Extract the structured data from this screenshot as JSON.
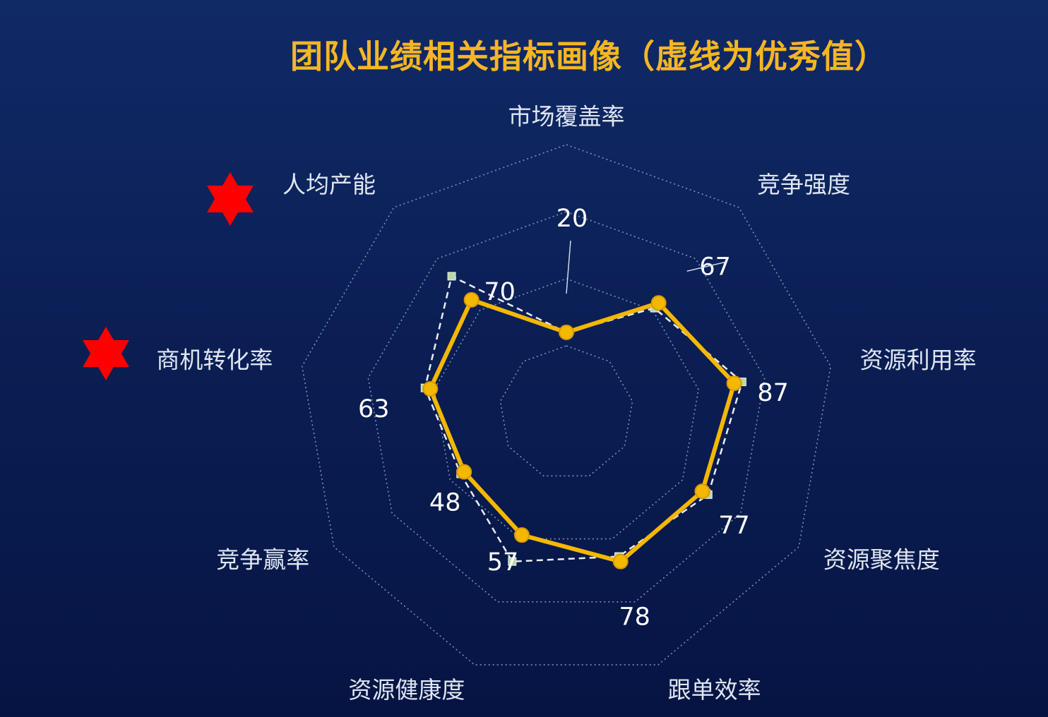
{
  "chart_data": {
    "type": "radar",
    "title": "团队业绩相关指标画像（虚线为优秀值）",
    "axes": [
      "市场覆盖率",
      "竞争强度",
      "资源利用率",
      "资源聚焦度",
      "跟单效率",
      "资源健康度",
      "竞争赢率",
      "商机转化率",
      "人均产能"
    ],
    "series": [
      {
        "values": [
          20,
          67,
          87,
          77,
          78,
          57,
          48,
          63,
          70
        ]
      },
      {
        "values": [
          20,
          62,
          93,
          82,
          74,
          78,
          51,
          67,
          93
        ]
      }
    ],
    "value_labels": [
      "20",
      "67",
      "87",
      "77",
      "78",
      "57",
      "48",
      "63",
      "70"
    ],
    "range": [
      -40,
      160
    ],
    "grid_levels": 4,
    "highlighted_axes": [
      "人均产能",
      "商机转化率"
    ],
    "colors": {
      "series_line": "#f5b800",
      "reference_line": "#e8edf5",
      "reference_marker": "#b8d8a8",
      "grid": "#8fa6d2",
      "star": "#ff0000"
    }
  }
}
